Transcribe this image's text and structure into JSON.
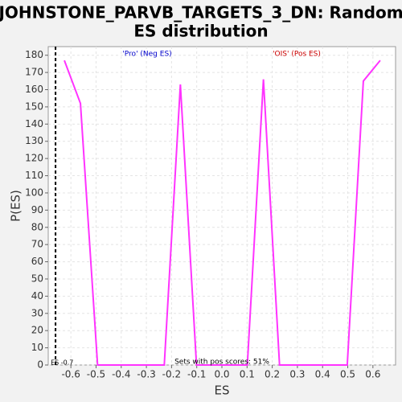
{
  "chart_data": {
    "type": "line",
    "title": [
      "JOHNSTONE_PARVB_TARGETS_3_DN: Random",
      "ES distribution"
    ],
    "x_label": "ES",
    "y_label": "P(ES)",
    "x": [
      -0.626,
      -0.562,
      -0.494,
      -0.229,
      -0.165,
      -0.101,
      0.101,
      0.165,
      0.229,
      0.498,
      0.562,
      0.629
    ],
    "series": [
      {
        "color": "#ff33ff",
        "values": [
          177,
          152,
          0,
          0,
          163,
          0,
          0,
          166,
          0,
          0,
          165,
          177
        ]
      }
    ],
    "xlim": [
      -0.69,
      0.69
    ],
    "ylim": [
      0,
      185
    ],
    "xticks": [
      -0.6,
      -0.5,
      -0.4,
      -0.3,
      -0.2,
      -0.1,
      {
        "value": 0,
        "label": "0.0"
      },
      0.1,
      0.2,
      0.3,
      0.4,
      0.5,
      0.6
    ],
    "yticks": [
      0,
      10,
      20,
      30,
      40,
      50,
      60,
      70,
      80,
      90,
      100,
      110,
      120,
      130,
      140,
      150,
      160,
      170,
      180
    ],
    "grid": true,
    "annotations": [
      {
        "text": "'Pro' (Neg ES)",
        "color": "#0000cc"
      },
      {
        "text": "'OIS' (Pos ES)",
        "color": "#cc0000"
      },
      {
        "text": "Sets with pos scores: 51%",
        "color": "#000000"
      }
    ],
    "vline": {
      "x": -0.661,
      "label": "ES -0.7"
    }
  }
}
